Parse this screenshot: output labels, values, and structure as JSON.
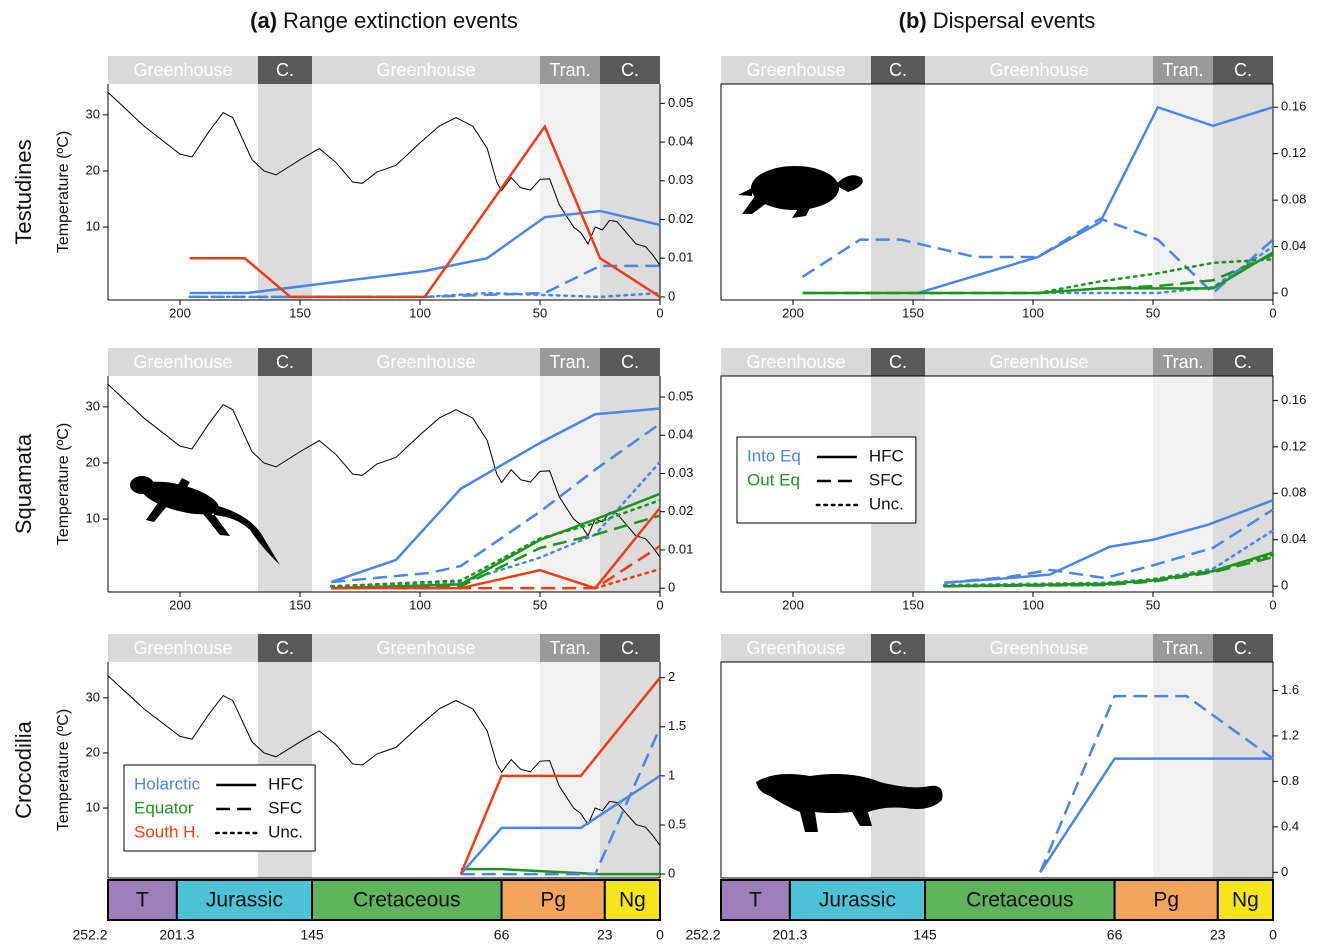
{
  "column_titles": [
    {
      "label": "(a)",
      "text": "Range extinction events"
    },
    {
      "label": "(b)",
      "text": "Dispersal events"
    }
  ],
  "row_labels": [
    "Testudines",
    "Squamata",
    "Crocodilia"
  ],
  "climate_periods": [
    {
      "label": "Greenhouse",
      "x": [
        230,
        167.5
      ],
      "color": "#d9d9d9",
      "shade": "#ffffff"
    },
    {
      "label": "C.",
      "x": [
        167.5,
        145
      ],
      "color": "#595959",
      "shade": "#dcdcdc"
    },
    {
      "label": "Greenhouse",
      "x": [
        145,
        50
      ],
      "color": "#d9d9d9",
      "shade": "#ffffff"
    },
    {
      "label": "Tran.",
      "x": [
        50,
        25
      ],
      "color": "#9a9a9a",
      "shade": "#f1f1f1"
    },
    {
      "label": "C.",
      "x": [
        25,
        0
      ],
      "color": "#595959",
      "shade": "#dcdcdc"
    }
  ],
  "geologic_periods": [
    {
      "label": "T",
      "color": "#9b7fb8"
    },
    {
      "label": "Jurassic",
      "color": "#4fc3d6"
    },
    {
      "label": "Cretaceous",
      "color": "#5fb35c"
    },
    {
      "label": "Pg",
      "color": "#f5a45e"
    },
    {
      "label": "Ng",
      "color": "#f7e51b"
    }
  ],
  "geologic_ticks": [
    252.2,
    201.3,
    145,
    66,
    23,
    0
  ],
  "paleotemperature": {
    "color": "#000000",
    "x": [
      230,
      215,
      200,
      195,
      188,
      182,
      178,
      170,
      165,
      160,
      150,
      142,
      135,
      128,
      124,
      118,
      110,
      100,
      92,
      85,
      78,
      72,
      68,
      66,
      62,
      58,
      54,
      50,
      46,
      42,
      36,
      33,
      30,
      27,
      24,
      21,
      18,
      14,
      10,
      6,
      3,
      0
    ],
    "values": [
      34,
      28,
      23,
      22.5,
      27,
      30.4,
      29.5,
      22,
      20,
      19.3,
      22,
      24,
      21.5,
      18,
      17.8,
      19.8,
      21,
      25,
      28,
      29.5,
      28,
      24,
      18,
      16.5,
      18.8,
      17,
      16.6,
      18.5,
      18.6,
      14,
      10,
      9,
      7,
      10,
      9.5,
      11.2,
      11,
      9,
      7,
      6.5,
      5,
      3.2
    ]
  },
  "chart_data": [
    {
      "type": "line",
      "ylabel": "Temperature (ºC)",
      "xlim": [
        230,
        0
      ],
      "xticks": [
        200,
        150,
        100,
        50,
        0
      ],
      "ylim": [
        -3,
        35.5
      ],
      "yticks": [
        10,
        20,
        30
      ],
      "y2lim": [
        -0.0008,
        0.055
      ],
      "y2ticks": [
        0,
        0.01,
        0.02,
        0.03,
        0.04,
        0.05
      ],
      "series": [
        {
          "color": "#4a86e8",
          "dash": "solid",
          "axis": "y2",
          "x": [
            196,
            172,
            98,
            72,
            48,
            25,
            0
          ],
          "values": [
            0.001,
            0.001,
            0.0067,
            0.01,
            0.0206,
            0.0222,
            0.0186
          ]
        },
        {
          "color": "#4a86e8",
          "dash": "dashed",
          "axis": "y2",
          "x": [
            196,
            145,
            98,
            48,
            25,
            0
          ],
          "values": [
            0,
            0,
            0,
            0.001,
            0.008,
            0.008
          ]
        },
        {
          "color": "#4a86e8",
          "dash": "dotted",
          "axis": "y2",
          "x": [
            196,
            98,
            72,
            48,
            25,
            0
          ],
          "values": [
            0,
            0,
            0.001,
            0.0005,
            0,
            0.001
          ]
        },
        {
          "color": "#f03c14",
          "dash": "solid",
          "axis": "y2",
          "x": [
            196,
            173,
            154,
            98,
            48,
            25,
            0
          ],
          "values": [
            0.01,
            0.01,
            0,
            0,
            0.044,
            0.01,
            0
          ]
        }
      ]
    },
    {
      "type": "line",
      "xlim": [
        230,
        0
      ],
      "xticks": [
        200,
        150,
        100,
        50,
        0
      ],
      "y2lim": [
        -0.006,
        0.18
      ],
      "y2ticks": [
        0,
        0.04,
        0.08,
        0.12,
        0.16
      ],
      "series": [
        {
          "color": "#4a86e8",
          "dash": "dashed",
          "axis": "y2",
          "x": [
            196,
            172,
            155,
            124,
            98,
            72,
            48,
            25,
            0
          ],
          "values": [
            0.014,
            0.046,
            0.046,
            0.031,
            0.031,
            0.064,
            0.046,
            0,
            0.046
          ]
        },
        {
          "color": "#4a86e8",
          "dash": "solid",
          "axis": "y2",
          "x": [
            148,
            98,
            72,
            48,
            25,
            0
          ],
          "values": [
            0,
            0.031,
            0.061,
            0.16,
            0.144,
            0.16
          ]
        },
        {
          "color": "#4a86e8",
          "dash": "dotted",
          "axis": "y2",
          "x": [
            98,
            48,
            25,
            0
          ],
          "values": [
            0,
            0,
            0.005,
            0.04
          ]
        },
        {
          "color": "#1a961a",
          "dash": "solid",
          "axis": "y2",
          "x": [
            196,
            98,
            72,
            25,
            0
          ],
          "values": [
            0,
            0,
            0.004,
            0.004,
            0.035
          ]
        },
        {
          "color": "#1a961a",
          "dash": "dashed",
          "axis": "y2",
          "x": [
            196,
            98,
            72,
            48,
            25,
            0
          ],
          "values": [
            0,
            0,
            0.004,
            0.006,
            0.011,
            0.033
          ]
        },
        {
          "color": "#1a961a",
          "dash": "dotted",
          "axis": "y2",
          "x": [
            98,
            72,
            48,
            25,
            0
          ],
          "values": [
            0,
            0.01,
            0.017,
            0.026,
            0.029
          ]
        }
      ]
    },
    {
      "type": "line",
      "ylabel": "Temperature (ºC)",
      "xlim": [
        230,
        0
      ],
      "xticks": [
        200,
        150,
        100,
        50,
        0
      ],
      "ylim": [
        -3,
        35.5
      ],
      "yticks": [
        10,
        20,
        30
      ],
      "y2lim": [
        -0.001,
        0.0555
      ],
      "y2ticks": [
        0,
        0.01,
        0.02,
        0.03,
        0.04,
        0.05
      ],
      "series": [
        {
          "color": "#4a86e8",
          "dash": "solid",
          "axis": "y2",
          "x": [
            137,
            110,
            83,
            50,
            27,
            0
          ],
          "values": [
            0.0016,
            0.0074,
            0.026,
            0.038,
            0.0455,
            0.047
          ]
        },
        {
          "color": "#4a86e8",
          "dash": "dashed",
          "axis": "y2",
          "x": [
            137,
            96,
            83,
            50,
            27,
            0
          ],
          "values": [
            0.0016,
            0.004,
            0.0058,
            0.02,
            0.031,
            0.043
          ]
        },
        {
          "color": "#4a86e8",
          "dash": "dotted",
          "axis": "y2",
          "x": [
            137,
            83,
            50,
            27,
            0
          ],
          "values": [
            0.0005,
            0.0015,
            0.008,
            0.014,
            0.033
          ]
        },
        {
          "color": "#1a961a",
          "dash": "solid",
          "axis": "y2",
          "x": [
            137,
            83,
            50,
            27,
            0
          ],
          "values": [
            0,
            0.001,
            0.0126,
            0.018,
            0.0247
          ]
        },
        {
          "color": "#1a961a",
          "dash": "dashed",
          "axis": "y2",
          "x": [
            137,
            83,
            50,
            27,
            0
          ],
          "values": [
            0,
            0.0005,
            0.0105,
            0.014,
            0.019
          ]
        },
        {
          "color": "#1a961a",
          "dash": "dotted",
          "axis": "y2",
          "x": [
            137,
            83,
            50,
            27,
            0
          ],
          "values": [
            0.0005,
            0.002,
            0.013,
            0.017,
            0.023
          ]
        },
        {
          "color": "#f03c14",
          "dash": "solid",
          "axis": "y2",
          "x": [
            137,
            83,
            50,
            27,
            0
          ],
          "values": [
            0,
            0,
            0.0047,
            0,
            0.021
          ]
        },
        {
          "color": "#f03c14",
          "dash": "dashed",
          "axis": "y2",
          "x": [
            137,
            27,
            0
          ],
          "values": [
            0,
            0,
            0.011
          ]
        },
        {
          "color": "#f03c14",
          "dash": "dotted",
          "axis": "y2",
          "x": [
            27,
            0
          ],
          "values": [
            0,
            0.005
          ]
        }
      ]
    },
    {
      "type": "line",
      "xlim": [
        230,
        0
      ],
      "xticks": [
        200,
        150,
        100,
        50,
        0
      ],
      "y2lim": [
        -0.005,
        0.181
      ],
      "y2ticks": [
        0,
        0.04,
        0.08,
        0.12,
        0.16
      ],
      "legend_loc": "upper left",
      "legend": {
        "colors": [
          {
            "label": "Into Eq",
            "color": "#4a86e8"
          },
          {
            "label": "Out Eq",
            "color": "#1a961a"
          }
        ],
        "styles": [
          {
            "label": "HFC",
            "dash": "solid"
          },
          {
            "label": "SFC",
            "dash": "dashed"
          },
          {
            "label": "Unc.",
            "dash": "dotted"
          }
        ]
      },
      "series": [
        {
          "color": "#4a86e8",
          "dash": "solid",
          "axis": "y2",
          "x": [
            137,
            110,
            93,
            68,
            50,
            27,
            0
          ],
          "values": [
            0.003,
            0.007,
            0.01,
            0.034,
            0.04,
            0.053,
            0.074
          ]
        },
        {
          "color": "#4a86e8",
          "dash": "dashed",
          "axis": "y2",
          "x": [
            137,
            110,
            93,
            70,
            50,
            25,
            0
          ],
          "values": [
            0.003,
            0.008,
            0.014,
            0.007,
            0.018,
            0.033,
            0.066
          ]
        },
        {
          "color": "#4a86e8",
          "dash": "dotted",
          "axis": "y2",
          "x": [
            137,
            70,
            50,
            25,
            0
          ],
          "values": [
            0.001,
            0.003,
            0.006,
            0.015,
            0.048
          ]
        },
        {
          "color": "#1a961a",
          "dash": "solid",
          "axis": "y2",
          "x": [
            137,
            70,
            50,
            25,
            0
          ],
          "values": [
            0,
            0.002,
            0.005,
            0.013,
            0.029
          ]
        },
        {
          "color": "#1a961a",
          "dash": "dashed",
          "axis": "y2",
          "x": [
            137,
            70,
            50,
            25,
            0
          ],
          "values": [
            0,
            0.001,
            0.004,
            0.012,
            0.025
          ]
        },
        {
          "color": "#1a961a",
          "dash": "dotted",
          "axis": "y2",
          "x": [
            137,
            70,
            50,
            25,
            0
          ],
          "values": [
            0,
            0.001,
            0.006,
            0.013,
            0.027
          ]
        }
      ]
    },
    {
      "type": "line",
      "ylabel": "Temperature (ºC)",
      "xlim": [
        230,
        0
      ],
      "xaxis": "geologic",
      "ylim": [
        -2.7,
        36.5
      ],
      "yticks": [
        10,
        20,
        30
      ],
      "y2lim": [
        -0.04,
        2.16
      ],
      "y2ticks": [
        0,
        0.5,
        1,
        1.5,
        2
      ],
      "legend_loc": "lower left",
      "legend": {
        "colors": [
          {
            "label": "Holarctic",
            "color": "#4a86e8"
          },
          {
            "label": "Equator",
            "color": "#1a961a"
          },
          {
            "label": "South H.",
            "color": "#f03c14"
          }
        ],
        "styles": [
          {
            "label": "HFC",
            "dash": "solid"
          },
          {
            "label": "SFC",
            "dash": "dashed"
          },
          {
            "label": "Unc.",
            "dash": "dotted"
          }
        ]
      },
      "series": [
        {
          "color": "#1a961a",
          "dash": "solid",
          "axis": "y2",
          "x": [
            83,
            66,
            50,
            25,
            0
          ],
          "values": [
            0.05,
            0.05,
            0.03,
            0,
            0
          ]
        },
        {
          "color": "#4a86e8",
          "dash": "solid",
          "axis": "y2",
          "x": [
            83,
            66,
            33,
            0
          ],
          "values": [
            0,
            0.47,
            0.47,
            1
          ]
        },
        {
          "color": "#4a86e8",
          "dash": "dashed",
          "axis": "y2",
          "x": [
            83,
            27,
            0
          ],
          "values": [
            0,
            0,
            1.49
          ]
        },
        {
          "color": "#f03c14",
          "dash": "solid",
          "axis": "y2",
          "x": [
            83,
            66,
            33,
            0
          ],
          "values": [
            0,
            1,
            1,
            2
          ]
        }
      ]
    },
    {
      "type": "line",
      "xlim": [
        230,
        0
      ],
      "xaxis": "geologic",
      "y2lim": [
        -0.05,
        1.85
      ],
      "y2ticks": [
        0,
        0.4,
        0.8,
        1.2,
        1.6
      ],
      "series": [
        {
          "color": "#4a86e8",
          "dash": "solid",
          "axis": "y2",
          "x": [
            97,
            66,
            0
          ],
          "values": [
            0,
            1,
            1
          ]
        },
        {
          "color": "#4a86e8",
          "dash": "dashed",
          "axis": "y2",
          "x": [
            97,
            66,
            36,
            0
          ],
          "values": [
            0,
            1.55,
            1.55,
            1
          ]
        }
      ]
    }
  ]
}
